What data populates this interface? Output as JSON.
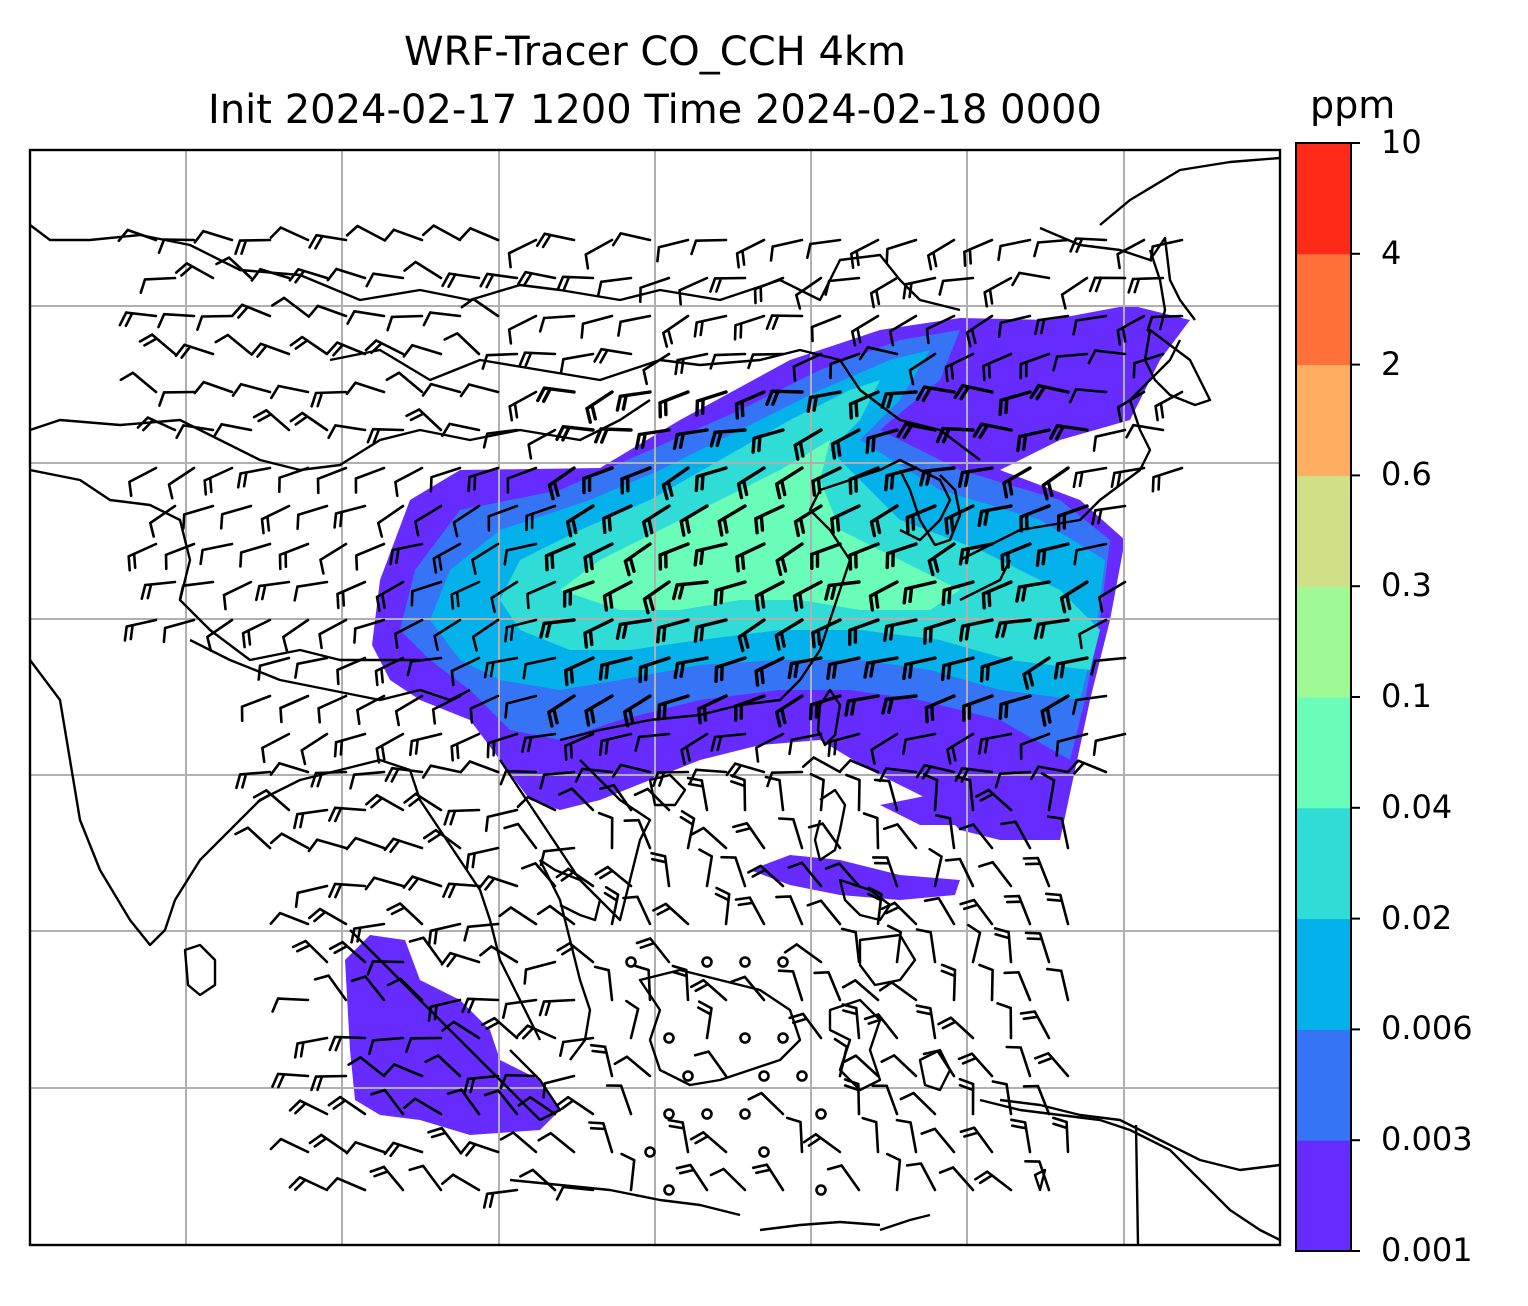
{
  "title": {
    "line1": "WRF-Tracer CO_CCH 4km",
    "line2": "Init 2024-02-17 1200 Time 2024-02-18 0000"
  },
  "colorbar": {
    "unit": "ppm",
    "levels": [
      "0.001",
      "0.003",
      "0.006",
      "0.02",
      "0.04",
      "0.1",
      "0.3",
      "0.6",
      "2",
      "4",
      "10"
    ],
    "colors": [
      "#652bff",
      "#3474f5",
      "#05b1ea",
      "#2fdcd6",
      "#6afcb9",
      "#9ffa95",
      "#d1e087",
      "#ffad61",
      "#ff7139",
      "#ff2a17"
    ]
  },
  "map": {
    "grid": "on",
    "overlays": [
      "coastlines",
      "country-borders",
      "wind-barbs",
      "tracer-concentration"
    ]
  }
}
